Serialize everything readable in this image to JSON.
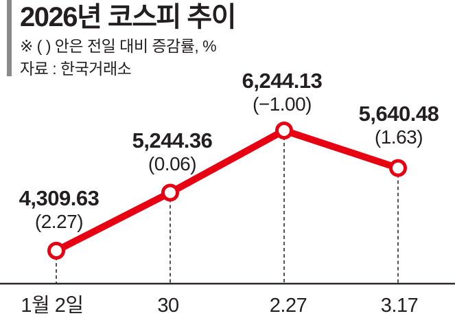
{
  "header": {
    "title": "2026년 코스피 추이",
    "note": "※ ( ) 안은 전일 대비 증감률, %",
    "source": "자료 : 한국거래소"
  },
  "chart_data": {
    "type": "line",
    "title": "2026년 코스피 추이",
    "categories": [
      "1월 2일",
      "30",
      "2.27",
      "3.17"
    ],
    "values": [
      4309.63,
      5244.36,
      6244.13,
      5640.48
    ],
    "changes_pct": [
      2.27,
      0.06,
      -1.0,
      1.63
    ],
    "points": [
      {
        "x_label": "1월 2일",
        "value_label": "4,309.63",
        "change_label": "(2.27)"
      },
      {
        "x_label": "30",
        "value_label": "5,244.36",
        "change_label": "(0.06)"
      },
      {
        "x_label": "2.27",
        "value_label": "6,244.13",
        "change_label": "(−1.00)"
      },
      {
        "x_label": "3.17",
        "value_label": "5,640.48",
        "change_label": "(1.63)"
      }
    ],
    "legend": "none",
    "grid": "dashed vertical droplines to x-axis",
    "marker": "white circle with red ring",
    "colors": {
      "line": "#e60012",
      "axis": "#2b2628",
      "text": "#231f20",
      "accent_bar": "#8a8a8a"
    }
  }
}
